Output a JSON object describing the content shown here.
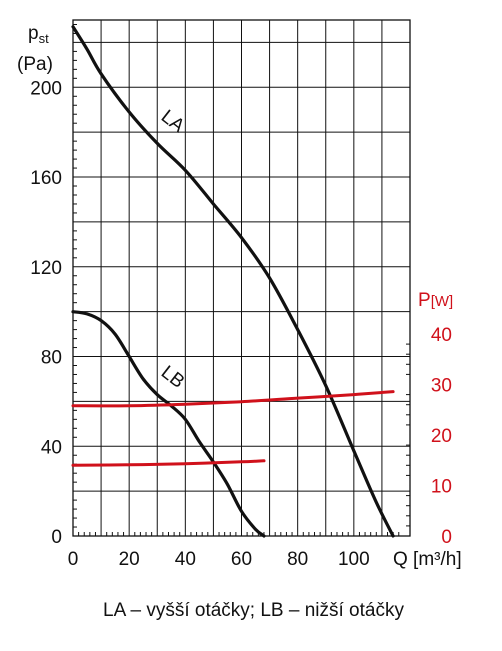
{
  "chart_data": {
    "type": "line",
    "left_axis": {
      "label": "p",
      "label_subscript": "st",
      "unit": "(Pa)",
      "range": [
        0,
        230
      ],
      "ticks": [
        0,
        40,
        80,
        120,
        160,
        200
      ],
      "tick_labels": [
        "0",
        "40",
        "80",
        "120",
        "160",
        "200"
      ],
      "color": "#111111"
    },
    "right_axis": {
      "label": "P",
      "unit": "[W]",
      "range": [
        0,
        40
      ],
      "ticks": [
        0,
        10,
        20,
        30,
        40
      ],
      "tick_labels": [
        "0",
        "10",
        "20",
        "30",
        "40"
      ],
      "color": "#d0111b"
    },
    "x_axis": {
      "label": "Q [m³/h]",
      "range": [
        0,
        120
      ],
      "ticks": [
        0,
        20,
        40,
        60,
        80,
        100
      ],
      "tick_labels": [
        "0",
        "20",
        "40",
        "60",
        "80",
        "100"
      ]
    },
    "grid": true,
    "series": [
      {
        "name": "LA",
        "axis": "left",
        "color": "#111111",
        "x": [
          0,
          5,
          10,
          20,
          30,
          40,
          50,
          60,
          70,
          80,
          90,
          100,
          108,
          114
        ],
        "y": [
          227,
          217,
          206,
          189,
          175,
          163,
          148,
          133,
          115,
          92,
          67,
          38,
          15,
          0
        ]
      },
      {
        "name": "LB",
        "axis": "left",
        "color": "#111111",
        "x": [
          0,
          5,
          10,
          15,
          20,
          25,
          30,
          35,
          40,
          45,
          50,
          55,
          60,
          65,
          68
        ],
        "y": [
          100,
          99,
          96,
          90,
          80,
          70,
          63,
          58,
          52,
          42,
          33,
          23,
          11,
          3,
          0
        ]
      },
      {
        "name": "LA",
        "axis": "right",
        "color": "#d0111b",
        "x": [
          0,
          20,
          40,
          60,
          80,
          100,
          114
        ],
        "y": [
          25.8,
          25.8,
          26.1,
          26.6,
          27.3,
          28.0,
          28.6
        ]
      },
      {
        "name": "LB",
        "axis": "right",
        "color": "#d0111b",
        "x": [
          0,
          20,
          40,
          60,
          68
        ],
        "y": [
          14.0,
          14.1,
          14.3,
          14.7,
          14.9
        ]
      }
    ],
    "annotations": [
      {
        "text": "LA",
        "x": 31,
        "y": 186
      },
      {
        "text": "LB",
        "x": 31,
        "y": 72
      }
    ],
    "caption": "LA – vyšší otáčky; LB – nižší otáčky"
  }
}
